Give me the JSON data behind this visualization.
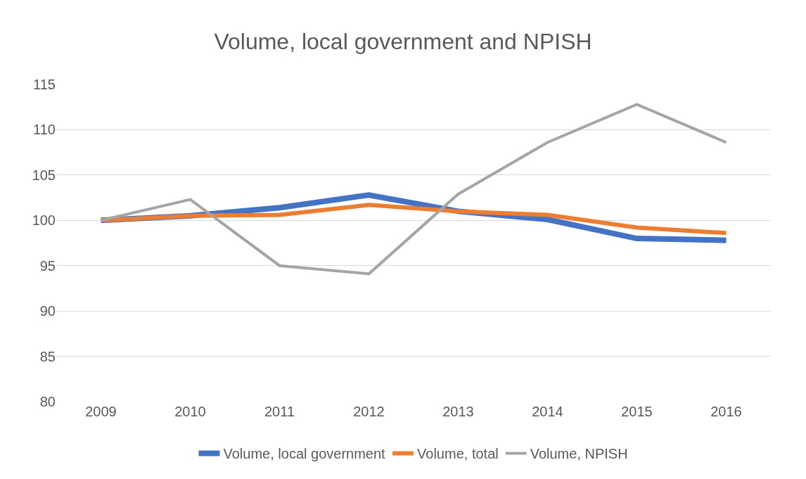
{
  "chart_data": {
    "type": "line",
    "title": "Volume, local government and NPISH",
    "categories": [
      "2009",
      "2010",
      "2011",
      "2012",
      "2013",
      "2014",
      "2015",
      "2016"
    ],
    "series": [
      {
        "name": "Volume, local government",
        "color": "#4472c4",
        "values": [
          100,
          100.5,
          101.4,
          102.8,
          101.0,
          100.1,
          98.0,
          97.8
        ]
      },
      {
        "name": "Volume, total",
        "color": "#ed7d31",
        "values": [
          100,
          100.5,
          100.6,
          101.7,
          101.0,
          100.6,
          99.2,
          98.6
        ]
      },
      {
        "name": "Volume, NPISH",
        "color": "#a5a5a5",
        "values": [
          100,
          102.3,
          95.0,
          94.1,
          102.9,
          108.6,
          112.8,
          108.6
        ]
      }
    ],
    "ylim": [
      80,
      115
    ],
    "yticks": [
      80,
      85,
      90,
      95,
      100,
      105,
      110,
      115
    ],
    "grid": "y",
    "legend": "bottom",
    "marker": "none",
    "line_style": "solid"
  }
}
